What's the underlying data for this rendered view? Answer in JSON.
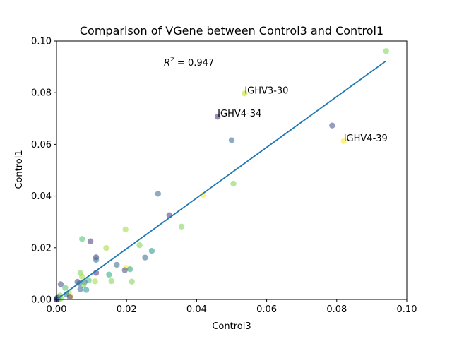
{
  "chart_data": {
    "type": "scatter",
    "title": "Comparison of VGene between Control3 and Control1",
    "xlabel": "Control3",
    "ylabel": "Control1",
    "xlim": [
      0,
      0.1
    ],
    "ylim": [
      0,
      0.1
    ],
    "xticks": [
      "0.00",
      "0.02",
      "0.04",
      "0.06",
      "0.08",
      "0.10"
    ],
    "yticks": [
      "0.00",
      "0.02",
      "0.04",
      "0.06",
      "0.08",
      "0.10"
    ],
    "grid": false,
    "legend": "none",
    "r2_prefix": "R",
    "r2_exponent": "2",
    "r2_value": " = 0.947",
    "fit_line": {
      "x0": 0.0,
      "y0": 0.0,
      "x1": 0.094,
      "y1": 0.0922,
      "color": "#1f77b4"
    },
    "annotations": [
      {
        "text": "IGHV3-30",
        "x": 0.0537,
        "y": 0.0797
      },
      {
        "text": "IGHV4-34",
        "x": 0.046,
        "y": 0.0707
      },
      {
        "text": "IGHV4-39",
        "x": 0.082,
        "y": 0.0612
      }
    ],
    "points": [
      {
        "x": 0.0941,
        "y": 0.0961,
        "color": "#7ad151"
      },
      {
        "x": 0.0537,
        "y": 0.0797,
        "color": "#bddf26"
      },
      {
        "x": 0.046,
        "y": 0.0707,
        "color": "#482878"
      },
      {
        "x": 0.0787,
        "y": 0.0673,
        "color": "#3e4a89"
      },
      {
        "x": 0.05,
        "y": 0.0616,
        "color": "#31688e"
      },
      {
        "x": 0.082,
        "y": 0.0612,
        "color": "#fde725"
      },
      {
        "x": 0.0505,
        "y": 0.0448,
        "color": "#7ad151"
      },
      {
        "x": 0.029,
        "y": 0.0409,
        "color": "#31688e"
      },
      {
        "x": 0.0418,
        "y": 0.0404,
        "color": "#fde725"
      },
      {
        "x": 0.0322,
        "y": 0.0326,
        "color": "#443983"
      },
      {
        "x": 0.0357,
        "y": 0.0282,
        "color": "#7ad151"
      },
      {
        "x": 0.0197,
        "y": 0.0271,
        "color": "#a0da39"
      },
      {
        "x": 0.0073,
        "y": 0.0234,
        "color": "#4ac16d"
      },
      {
        "x": 0.0097,
        "y": 0.0225,
        "color": "#443983"
      },
      {
        "x": 0.0237,
        "y": 0.021,
        "color": "#7ad151"
      },
      {
        "x": 0.0142,
        "y": 0.0199,
        "color": "#a0da39"
      },
      {
        "x": 0.0272,
        "y": 0.0188,
        "color": "#21918c"
      },
      {
        "x": 0.0113,
        "y": 0.0163,
        "color": "#472d7b"
      },
      {
        "x": 0.0253,
        "y": 0.0162,
        "color": "#31688e"
      },
      {
        "x": 0.0113,
        "y": 0.0153,
        "color": "#2c728e"
      },
      {
        "x": 0.0172,
        "y": 0.0134,
        "color": "#31688e"
      },
      {
        "x": 0.0198,
        "y": 0.0122,
        "color": "#fde725"
      },
      {
        "x": 0.021,
        "y": 0.0117,
        "color": "#1fa187"
      },
      {
        "x": 0.0195,
        "y": 0.0113,
        "color": "#3e4a89"
      },
      {
        "x": 0.0113,
        "y": 0.0103,
        "color": "#472d7b"
      },
      {
        "x": 0.0068,
        "y": 0.0102,
        "color": "#7ad151"
      },
      {
        "x": 0.015,
        "y": 0.0096,
        "color": "#22a884"
      },
      {
        "x": 0.0073,
        "y": 0.0088,
        "color": "#a0da39"
      },
      {
        "x": 0.0092,
        "y": 0.0074,
        "color": "#4ac16d"
      },
      {
        "x": 0.0157,
        "y": 0.0071,
        "color": "#7ad151"
      },
      {
        "x": 0.011,
        "y": 0.007,
        "color": "#a0da39"
      },
      {
        "x": 0.0215,
        "y": 0.0069,
        "color": "#7ad151"
      },
      {
        "x": 0.006,
        "y": 0.0068,
        "color": "#3e4a89"
      },
      {
        "x": 0.008,
        "y": 0.0067,
        "color": "#2c728e"
      },
      {
        "x": 0.0065,
        "y": 0.0062,
        "color": "#31688e"
      },
      {
        "x": 0.0012,
        "y": 0.0059,
        "color": "#3e4a89"
      },
      {
        "x": 0.0077,
        "y": 0.0055,
        "color": "#7ad151"
      },
      {
        "x": 0.0025,
        "y": 0.0045,
        "color": "#4ac16d"
      },
      {
        "x": 0.0068,
        "y": 0.004,
        "color": "#31688e"
      },
      {
        "x": 0.0085,
        "y": 0.0037,
        "color": "#21918c"
      },
      {
        "x": 0.0035,
        "y": 0.0025,
        "color": "#a0da39"
      },
      {
        "x": 0.0028,
        "y": 0.0019,
        "color": "#2c728e"
      },
      {
        "x": 0.001,
        "y": 0.0015,
        "color": "#7ad151"
      },
      {
        "x": 0.004,
        "y": 0.0012,
        "color": "#fde725"
      },
      {
        "x": 0.0038,
        "y": 0.001,
        "color": "#443983"
      },
      {
        "x": 0.0005,
        "y": 0.0009,
        "color": "#482878"
      },
      {
        "x": 0.0002,
        "y": 0.0006,
        "color": "#31688e"
      },
      {
        "x": 0.0008,
        "y": 0.0004,
        "color": "#fde725"
      },
      {
        "x": 0.0004,
        "y": 0.0002,
        "color": "#21918c"
      },
      {
        "x": 0.0001,
        "y": 0.0001,
        "color": "#3e4a89"
      },
      {
        "x": 0.0012,
        "y": 0.0003,
        "color": "#7ad151"
      },
      {
        "x": 0.0,
        "y": 0.0,
        "color": "#440154"
      }
    ]
  }
}
